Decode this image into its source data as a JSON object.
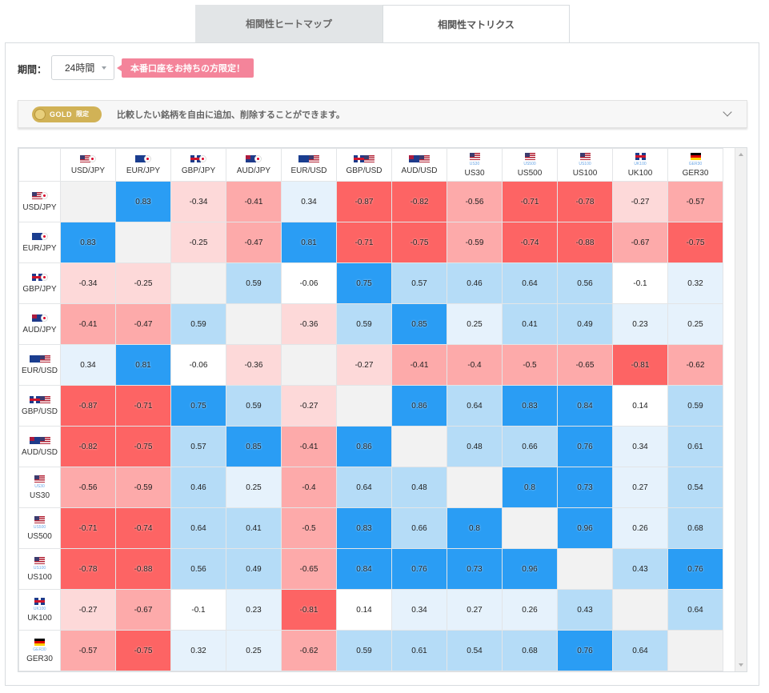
{
  "tabs": [
    {
      "label": "相関性ヒートマップ",
      "active": false
    },
    {
      "label": "相関性マトリクス",
      "active": true
    }
  ],
  "period": {
    "label": "期間：",
    "value": "24時間"
  },
  "promo_badge": "本番口座をお持ちの方限定！",
  "gold": {
    "badge_text": "GOLD",
    "badge_sub": "限定",
    "description": "比較したい銘柄を自由に追加、削除することができます。"
  },
  "colors": {
    "positive_strong": "#2a9df4",
    "positive_mid": "#b5dcf7",
    "positive_light": "#e6f2fc",
    "negative_strong": "#fd6464",
    "negative_mid": "#fdaaaa",
    "negative_light": "#fdd9d9",
    "diagonal": "#f2f2f2"
  },
  "symbols": [
    {
      "label": "USD/JPY",
      "flags": [
        "us",
        "jp"
      ],
      "sub": ""
    },
    {
      "label": "EUR/JPY",
      "flags": [
        "eu",
        "jp"
      ],
      "sub": ""
    },
    {
      "label": "GBP/JPY",
      "flags": [
        "gb",
        "jp"
      ],
      "sub": ""
    },
    {
      "label": "AUD/JPY",
      "flags": [
        "au",
        "jp"
      ],
      "sub": ""
    },
    {
      "label": "EUR/USD",
      "flags": [
        "eu",
        "us"
      ],
      "sub": ""
    },
    {
      "label": "GBP/USD",
      "flags": [
        "gb",
        "us"
      ],
      "sub": ""
    },
    {
      "label": "AUD/USD",
      "flags": [
        "au",
        "us"
      ],
      "sub": ""
    },
    {
      "label": "US30",
      "flags": [
        "us"
      ],
      "sub": "US30"
    },
    {
      "label": "US500",
      "flags": [
        "us"
      ],
      "sub": "US500"
    },
    {
      "label": "US100",
      "flags": [
        "us"
      ],
      "sub": "US100"
    },
    {
      "label": "UK100",
      "flags": [
        "gb"
      ],
      "sub": "UK100"
    },
    {
      "label": "GER30",
      "flags": [
        "de"
      ],
      "sub": "GER30"
    }
  ],
  "matrix": [
    [
      null,
      0.83,
      -0.34,
      -0.41,
      0.34,
      -0.87,
      -0.82,
      -0.56,
      -0.71,
      -0.78,
      -0.27,
      -0.57
    ],
    [
      0.83,
      null,
      -0.25,
      -0.47,
      0.81,
      -0.71,
      -0.75,
      -0.59,
      -0.74,
      -0.88,
      -0.67,
      -0.75
    ],
    [
      -0.34,
      -0.25,
      null,
      0.59,
      -0.06,
      0.75,
      0.57,
      0.46,
      0.64,
      0.56,
      -0.1,
      0.32
    ],
    [
      -0.41,
      -0.47,
      0.59,
      null,
      -0.36,
      0.59,
      0.85,
      0.25,
      0.41,
      0.49,
      0.23,
      0.25
    ],
    [
      0.34,
      0.81,
      -0.06,
      -0.36,
      null,
      -0.27,
      -0.41,
      -0.4,
      -0.5,
      -0.65,
      -0.81,
      -0.62
    ],
    [
      -0.87,
      -0.71,
      0.75,
      0.59,
      -0.27,
      null,
      0.86,
      0.64,
      0.83,
      0.84,
      0.14,
      0.59
    ],
    [
      -0.82,
      -0.75,
      0.57,
      0.85,
      -0.41,
      0.86,
      null,
      0.48,
      0.66,
      0.76,
      0.34,
      0.61
    ],
    [
      -0.56,
      -0.59,
      0.46,
      0.25,
      -0.4,
      0.64,
      0.48,
      null,
      0.8,
      0.73,
      0.27,
      0.54
    ],
    [
      -0.71,
      -0.74,
      0.64,
      0.41,
      -0.5,
      0.83,
      0.66,
      0.8,
      null,
      0.96,
      0.26,
      0.68
    ],
    [
      -0.78,
      -0.88,
      0.56,
      0.49,
      -0.65,
      0.84,
      0.76,
      0.73,
      0.96,
      null,
      0.43,
      0.76
    ],
    [
      -0.27,
      -0.67,
      -0.1,
      0.23,
      -0.81,
      0.14,
      0.34,
      0.27,
      0.26,
      0.43,
      null,
      0.64
    ],
    [
      -0.57,
      -0.75,
      0.32,
      0.25,
      -0.62,
      0.59,
      0.61,
      0.54,
      0.68,
      0.76,
      0.64,
      null
    ]
  ]
}
